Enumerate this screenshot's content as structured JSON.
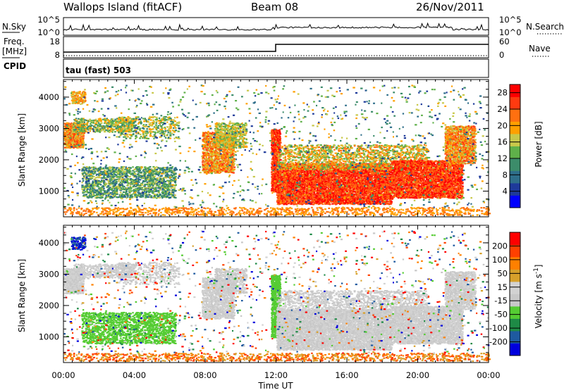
{
  "header": {
    "left_title": "Wallops Island (fitACF)",
    "center_title": "Beam 08",
    "right_title": "26/Nov/2011"
  },
  "noise_panel": {
    "left_label": "N.Sky",
    "right_label": "N.Search",
    "left_ticks": [
      "10^5",
      "10^0"
    ],
    "right_ticks": [
      "10^5",
      "10^0"
    ]
  },
  "freq_panel": {
    "left_label_1": "Freq.",
    "left_label_2": "[MHz]",
    "left_ticks": [
      "18",
      "8"
    ],
    "right_label": "Nave",
    "right_ticks": [
      "60",
      "0"
    ],
    "cpid_label": "CPID"
  },
  "mode_label": "tau (fast) 503",
  "colors": {
    "power": [
      "#0000ff",
      "#1e3a9a",
      "#2e6e8a",
      "#3c8c6a",
      "#5fb04a",
      "#c8c84a",
      "#ffa000",
      "#ff7010",
      "#ff3a10",
      "#ff0000"
    ],
    "velocity": [
      "#0000dd",
      "#1e5aa0",
      "#1e8a46",
      "#55cc33",
      "#c8c8c8",
      "#d2d2d2",
      "#d7a02a",
      "#ff8000",
      "#ff4000",
      "#ff0000"
    ],
    "velocity_ground": "#c8c8c8"
  },
  "chart_data": [
    {
      "type": "heatmap",
      "name": "Power",
      "xlabel": "",
      "ylabel": "Slant Range [km]",
      "y_ticks": [
        "1000",
        "2000",
        "3000",
        "4000"
      ],
      "ylim": [
        180,
        4560
      ],
      "x_ticks": [
        "00:00",
        "04:00",
        "08:00",
        "12:00",
        "16:00",
        "20:00",
        "00:00"
      ],
      "xlim_hours": [
        0,
        24
      ],
      "colorbar": {
        "label": "Power [dB]",
        "ticks": [
          "28",
          "24",
          "20",
          "16",
          "12",
          "8",
          "4"
        ],
        "range": [
          0,
          30
        ]
      }
    },
    {
      "type": "heatmap",
      "name": "Velocity",
      "xlabel": "Time UT",
      "ylabel": "Slant Range [km]",
      "y_ticks": [
        "1000",
        "2000",
        "3000",
        "4000"
      ],
      "ylim": [
        180,
        4560
      ],
      "x_ticks": [
        "00:00",
        "04:00",
        "08:00",
        "12:00",
        "16:00",
        "20:00",
        "00:00"
      ],
      "xlim_hours": [
        0,
        24
      ],
      "colorbar": {
        "label_main": "Velocity [m s",
        "label_sup": "-1",
        "label_end": "]",
        "ticks": [
          "200",
          "100",
          "50",
          "15",
          "-15",
          "-50",
          "-100",
          "-200"
        ],
        "range": [
          -250,
          250
        ]
      }
    }
  ]
}
